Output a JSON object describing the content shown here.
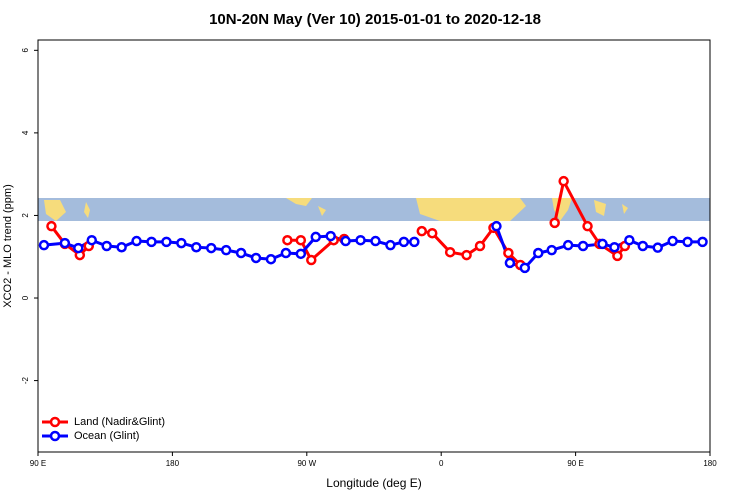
{
  "chart_data": {
    "type": "line",
    "title": "10N-20N May (Ver 10)   2015-01-01 to 2020-12-18",
    "x_label": "Longitude (deg E)",
    "y_label": "XCO2 - MLO trend (ppm)",
    "xlim": [
      90,
      540
    ],
    "ylim": [
      -3.73,
      6.25
    ],
    "xticks": [
      {
        "value": 90,
        "label": "90 E"
      },
      180,
      {
        "value": 270,
        "label": "90 W"
      },
      {
        "value": 360,
        "label": "0"
      },
      {
        "value": 450,
        "label": "90 E"
      },
      {
        "value": 540,
        "label": "180"
      }
    ],
    "yticks": [
      -2,
      0,
      2,
      4,
      6
    ],
    "legend": "bottom-left",
    "series": [
      {
        "name": "Land (Nadir&Glint)",
        "color": "#ff0000",
        "x": [
          99,
          108,
          118,
          124,
          190,
          257,
          266,
          273,
          288,
          295,
          320,
          347,
          354,
          366,
          377,
          386,
          395,
          405,
          413,
          425,
          436,
          442,
          458,
          466,
          478,
          483
        ],
        "values": [
          1.74,
          1.31,
          1.04,
          1.26,
          null,
          1.4,
          1.4,
          0.92,
          1.4,
          1.43,
          null,
          1.62,
          1.57,
          1.11,
          1.04,
          1.26,
          1.7,
          1.09,
          0.8,
          null,
          1.82,
          2.83,
          1.74,
          1.31,
          1.02,
          1.26
        ]
      },
      {
        "name": "Ocean (Glint)",
        "color": "#0000ff",
        "x": [
          94,
          108,
          117,
          126,
          136,
          146,
          156,
          166,
          176,
          186,
          196,
          206,
          216,
          226,
          236,
          246,
          256,
          266,
          276,
          286,
          296,
          306,
          316,
          326,
          335,
          342,
          370,
          397,
          406,
          416,
          425,
          434,
          445,
          455,
          468,
          476,
          486,
          495,
          505,
          515,
          525,
          535
        ],
        "values": [
          1.28,
          1.33,
          1.21,
          1.4,
          1.26,
          1.23,
          1.38,
          1.36,
          1.36,
          1.33,
          1.23,
          1.21,
          1.16,
          1.09,
          0.97,
          0.94,
          1.09,
          1.07,
          1.48,
          1.5,
          1.38,
          1.4,
          1.38,
          1.28,
          1.36,
          1.36,
          null,
          1.74,
          0.85,
          0.73,
          1.09,
          1.16,
          1.28,
          1.26,
          1.31,
          1.23,
          1.4,
          1.26,
          1.22,
          1.38,
          1.36,
          1.36
        ]
      }
    ]
  }
}
